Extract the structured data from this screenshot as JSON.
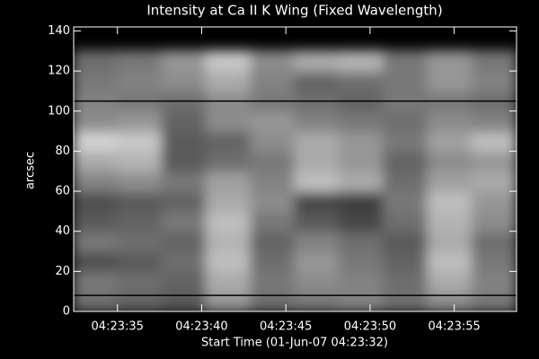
{
  "chart_data": {
    "type": "image",
    "title": "Intensity at Ca II K Wing (Fixed Wavelength)",
    "x_label": "Start Time (01-Jun-07 04:23:32)",
    "y_label": "arcsec",
    "xlim": [
      32.4,
      58.7
    ],
    "xticks": [
      {
        "value": 35,
        "label": "04:23:35"
      },
      {
        "value": 40,
        "label": "04:23:40"
      },
      {
        "value": 45,
        "label": "04:23:45"
      },
      {
        "value": 50,
        "label": "04:23:50"
      },
      {
        "value": 55,
        "label": "04:23:55"
      }
    ],
    "ylim": [
      0,
      142
    ],
    "yticks": [
      0,
      20,
      40,
      60,
      80,
      100,
      120,
      140
    ],
    "z_ylim": [
      0,
      130
    ],
    "z": [
      [
        110,
        100,
        90,
        150,
        110,
        120,
        130,
        110,
        140,
        120
      ],
      [
        120,
        110,
        100,
        170,
        120,
        140,
        130,
        110,
        170,
        130
      ],
      [
        80,
        90,
        110,
        190,
        110,
        150,
        120,
        100,
        190,
        120
      ],
      [
        120,
        110,
        100,
        180,
        100,
        130,
        110,
        90,
        170,
        110
      ],
      [
        90,
        100,
        120,
        190,
        120,
        90,
        70,
        110,
        180,
        140
      ],
      [
        80,
        90,
        100,
        170,
        140,
        70,
        60,
        120,
        190,
        150
      ],
      [
        130,
        140,
        120,
        160,
        130,
        190,
        170,
        110,
        160,
        170
      ],
      [
        170,
        180,
        90,
        110,
        120,
        170,
        150,
        100,
        140,
        150
      ],
      [
        210,
        200,
        90,
        100,
        140,
        170,
        150,
        120,
        160,
        190
      ],
      [
        140,
        150,
        100,
        140,
        150,
        130,
        120,
        110,
        140,
        130
      ],
      [
        130,
        120,
        110,
        140,
        120,
        110,
        100,
        120,
        120,
        110
      ],
      [
        120,
        130,
        140,
        170,
        130,
        100,
        110,
        120,
        150,
        130
      ],
      [
        110,
        120,
        150,
        200,
        140,
        170,
        180,
        120,
        150,
        120
      ]
    ],
    "hlines": [
      105,
      8
    ]
  }
}
